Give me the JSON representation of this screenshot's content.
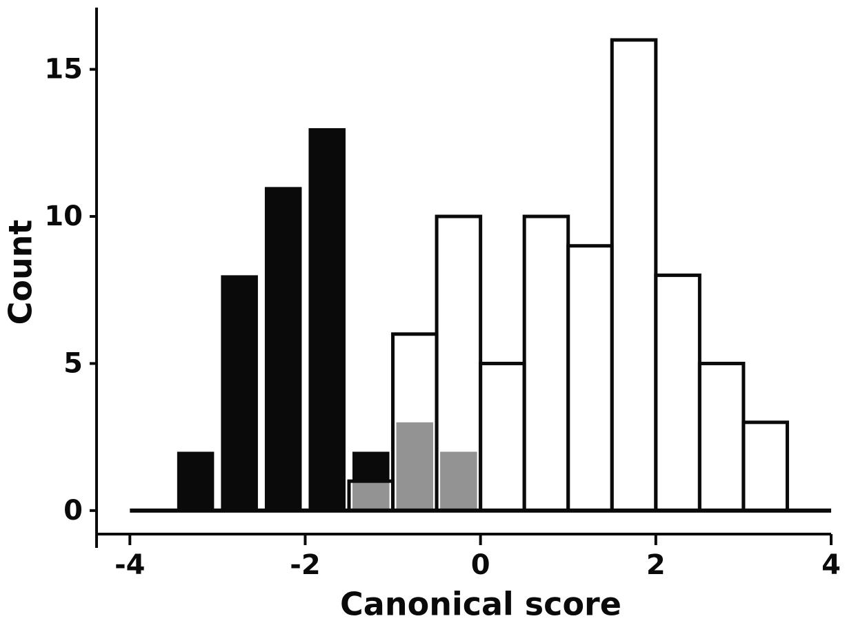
{
  "chart_data": {
    "type": "histogram",
    "x_label": "Canonical score",
    "y_label": "Count",
    "xlim": [
      -4.38,
      4
    ],
    "xticks": [
      -4,
      -2,
      0,
      2,
      4
    ],
    "ylim": [
      -0.8,
      17.1
    ],
    "yticks": [
      0,
      5,
      10,
      15
    ],
    "series": [
      {
        "color": "#0a0a0a",
        "bins": [
          -3.5,
          -3,
          -2.5,
          -2,
          -1.5,
          -1,
          -0.5,
          0
        ],
        "values": [
          2,
          8,
          11,
          13,
          2,
          3,
          2
        ]
      },
      {
        "color": "#ffffff",
        "bins": [
          -1.5,
          -1,
          -0.5,
          0,
          0.5,
          1,
          1.5,
          2,
          2.5,
          3,
          3.5
        ],
        "values": [
          1,
          6,
          10,
          5,
          10,
          9,
          16,
          8,
          5,
          3
        ]
      }
    ]
  }
}
